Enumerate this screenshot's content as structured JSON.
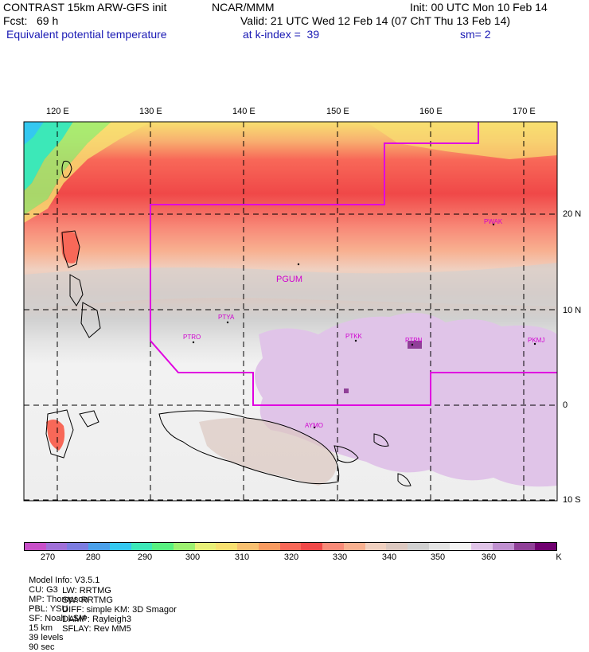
{
  "header": {
    "model_title": "CONTRAST 15km ARW-GFS init",
    "org": "NCAR/MMM",
    "init": "Init: 00 UTC Mon 10 Feb 14",
    "fcst": "Fcst:   69 h",
    "valid": "Valid: 21 UTC Wed 12 Feb 14 (07 ChT Thu 13 Feb 14)",
    "variable": "Equivalent potential temperature",
    "level": "at k-index =  39",
    "smooth": "sm= 2"
  },
  "map": {
    "lon_labels": [
      "120 E",
      "130 E",
      "140 E",
      "150 E",
      "160 E",
      "170 E"
    ],
    "lat_labels": [
      "20 N",
      "10 N",
      "0",
      "10 S"
    ],
    "stations": [
      {
        "id": "PGUM",
        "size": "big"
      },
      {
        "id": "PWAK",
        "size": "small"
      },
      {
        "id": "PTYA",
        "size": "small"
      },
      {
        "id": "PTRO",
        "size": "small"
      },
      {
        "id": "PTKK",
        "size": "small"
      },
      {
        "id": "PTPN",
        "size": "small"
      },
      {
        "id": "PKMJ",
        "size": "small"
      },
      {
        "id": "AYMO",
        "size": "small"
      }
    ]
  },
  "colorbar": {
    "colors": [
      "#c84fc8",
      "#a070d8",
      "#7c7ce0",
      "#4aa0ea",
      "#34c8f0",
      "#3ce8b8",
      "#58f080",
      "#9cf070",
      "#e8f078",
      "#f8e070",
      "#f8c070",
      "#f89a60",
      "#f86858",
      "#f04848",
      "#f88a78",
      "#f8b090",
      "#f0d0c0",
      "#dcc8c0",
      "#d0d0d0",
      "#e4e4e4",
      "#f4f4f4",
      "#e0c4e8",
      "#c090d0",
      "#904098",
      "#700070"
    ],
    "labels": [
      "270",
      "280",
      "290",
      "300",
      "310",
      "320",
      "330",
      "340",
      "350",
      "360",
      "K"
    ]
  },
  "footer": {
    "line1": [
      "Model Info: V3.5.1",
      "CU: G3",
      "MP: Thompson",
      "PBL: YSU",
      "SF: Noah LSM",
      "15 km",
      "39 levels",
      "90 sec"
    ],
    "line2": [
      "LW: RRTMG",
      "SW: RRTMG",
      "DIFF: simple KM: 3D Smagor",
      "DAMP: Rayleigh3",
      "SFLAY: Rev MM5"
    ]
  }
}
